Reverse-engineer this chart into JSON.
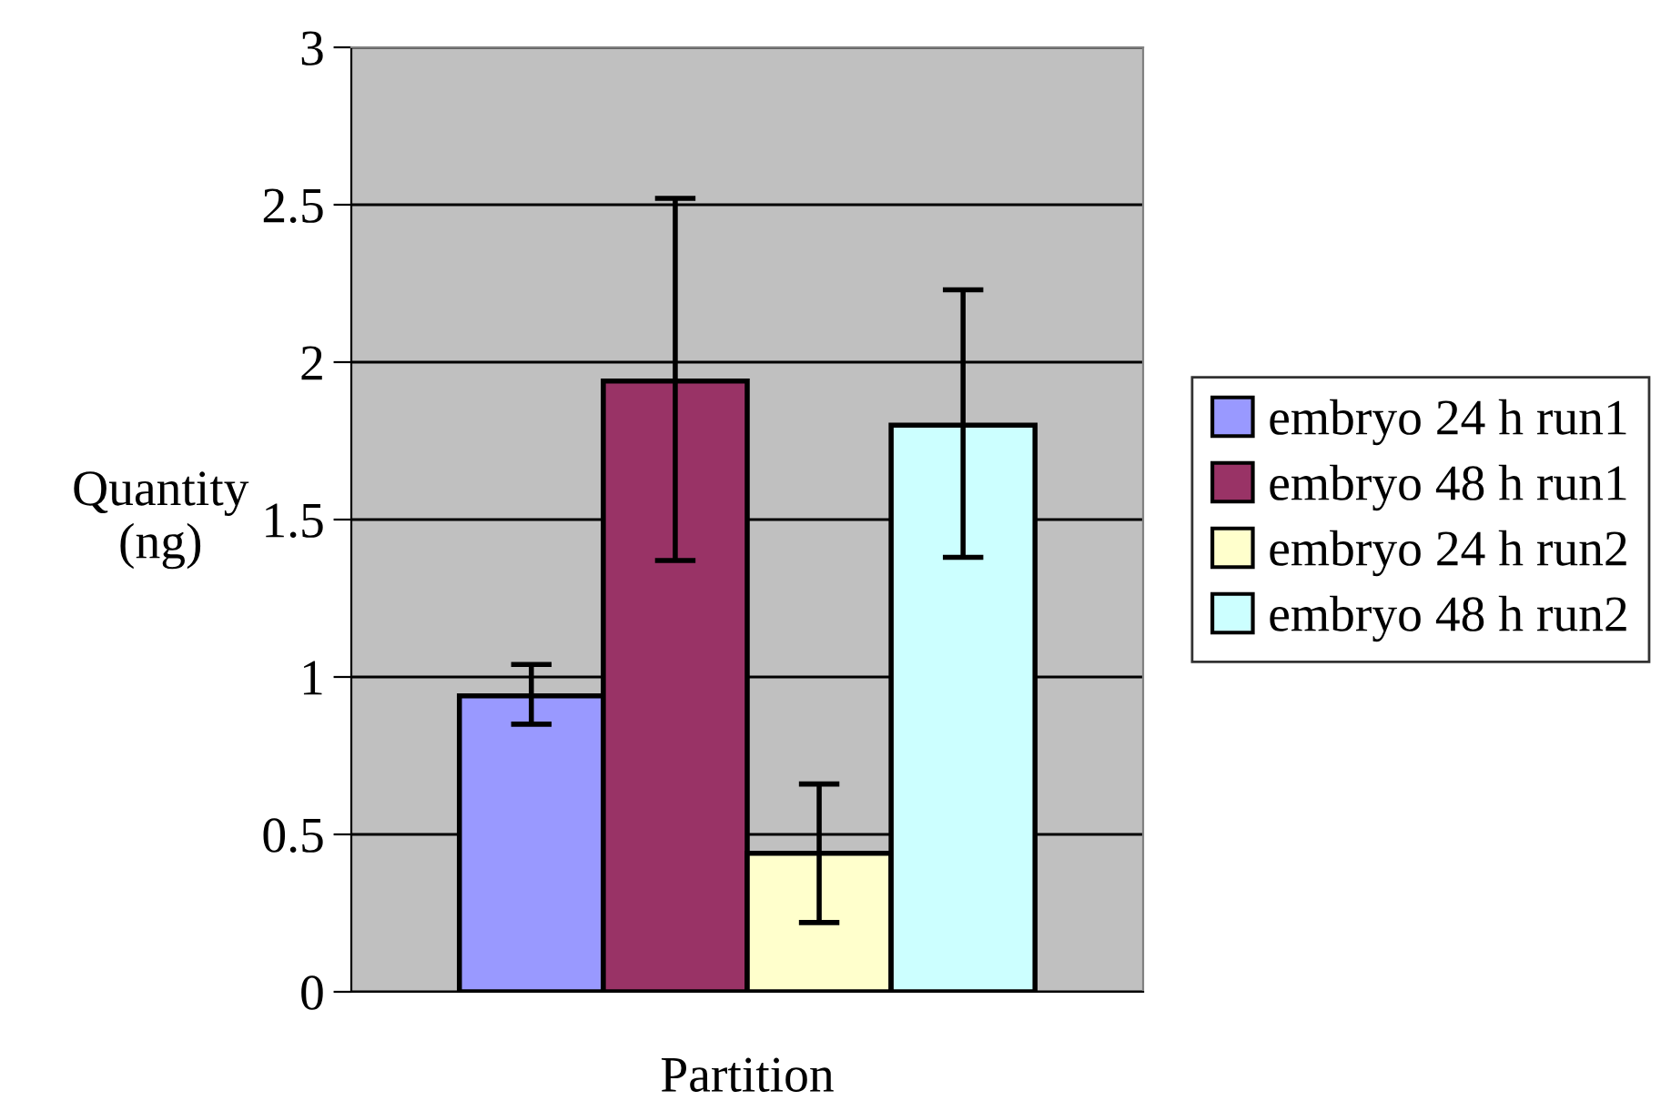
{
  "chart_data": {
    "type": "bar",
    "xlabel": "Partition",
    "ylabel": "Quantity\n(ng)",
    "categories": [
      null
    ],
    "series": [
      {
        "name": "embryo 24 h run1",
        "color": "#9999ff",
        "values": [
          0.94
        ],
        "errors": [
          [
            0.85,
            1.04
          ]
        ]
      },
      {
        "name": "embryo 48 h run1",
        "color": "#993366",
        "values": [
          1.94
        ],
        "errors": [
          [
            1.37,
            2.52
          ]
        ]
      },
      {
        "name": "embryo 24 h run2",
        "color": "#ffffcc",
        "values": [
          0.44
        ],
        "errors": [
          [
            0.22,
            0.66
          ]
        ]
      },
      {
        "name": "embryo 48 h run2",
        "color": "#ccffff",
        "values": [
          1.8
        ],
        "errors": [
          [
            1.38,
            2.23
          ]
        ]
      }
    ],
    "ylim": [
      0,
      3
    ],
    "yticks": [
      0,
      0.5,
      1,
      1.5,
      2,
      2.5,
      3
    ],
    "grid": "y",
    "legend": "right"
  }
}
